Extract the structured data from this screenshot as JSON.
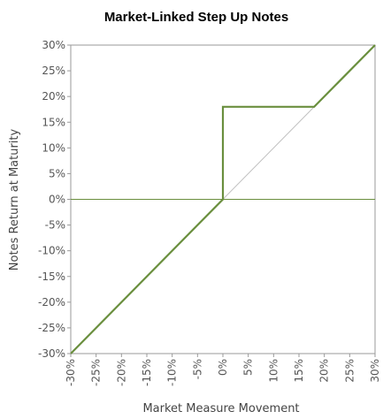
{
  "chart_data": {
    "type": "line",
    "title": "Market-Linked Step Up Notes",
    "xlabel": "Market Measure Movement",
    "ylabel": "Notes Return at Maturity",
    "xlim": [
      -30,
      30
    ],
    "ylim": [
      -30,
      30
    ],
    "x_ticks": [
      "-30%",
      "-25%",
      "-20%",
      "-15%",
      "-10%",
      "-5%",
      "0%",
      "5%",
      "10%",
      "15%",
      "20%",
      "25%",
      "30%"
    ],
    "y_ticks": [
      "30%",
      "25%",
      "20%",
      "15%",
      "10%",
      "5%",
      "0%",
      "-5%",
      "-10%",
      "-15%",
      "-20%",
      "-25%",
      "-30%"
    ],
    "grid": false,
    "series": [
      {
        "color": "#6a8f3e",
        "x": [
          -30,
          0,
          0,
          18,
          30
        ],
        "y": [
          -30,
          0,
          18,
          18,
          30
        ]
      },
      {
        "color": "#bfbfbf",
        "x": [
          -30,
          30
        ],
        "y": [
          -30,
          30
        ]
      }
    ],
    "zero_line_color": "#6a8f3e",
    "frame_color": "#9a9a9a"
  }
}
